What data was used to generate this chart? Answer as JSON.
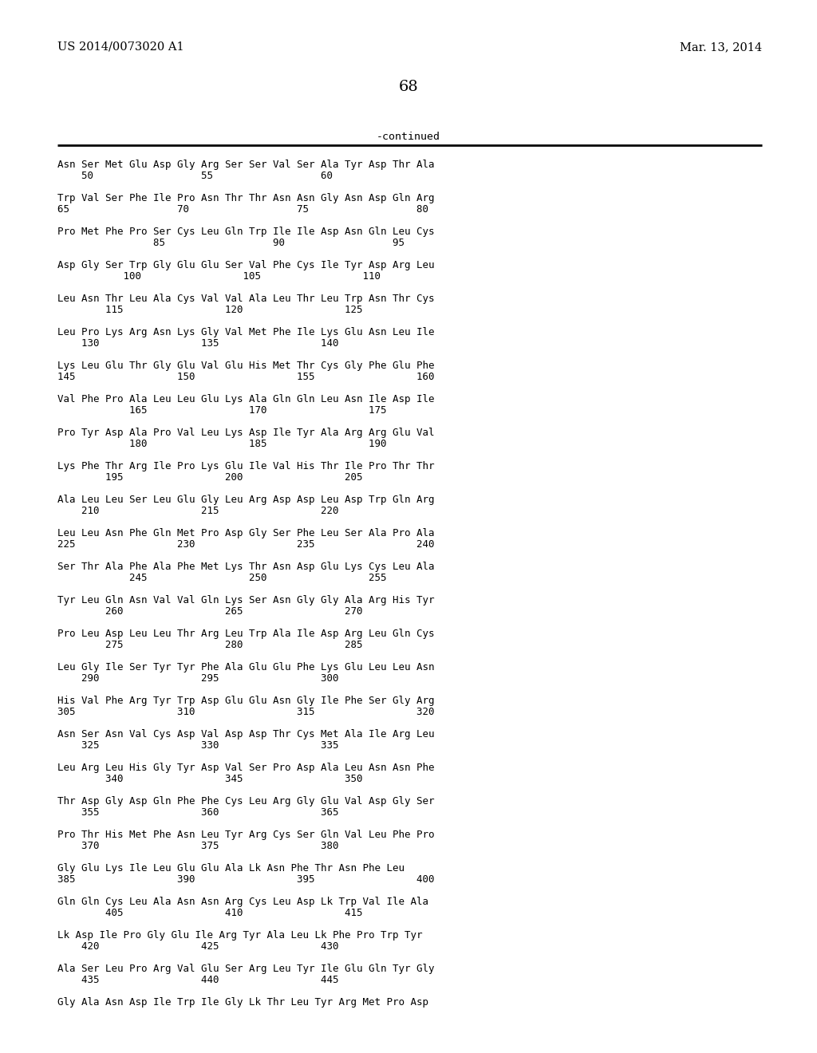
{
  "header_left": "US 2014/0073020 A1",
  "header_right": "Mar. 13, 2014",
  "page_number": "68",
  "continued_text": "-continued",
  "sequence_pairs": [
    [
      "Asn Ser Met Glu Asp Gly Arg Ser Ser Val Ser Ala Tyr Asp Thr Ala",
      "    50                  55                  60"
    ],
    [
      "Trp Val Ser Phe Ile Pro Asn Thr Thr Asn Asn Gly Asn Asp Gln Arg",
      "65                  70                  75                  80"
    ],
    [
      "Pro Met Phe Pro Ser Cys Leu Gln Trp Ile Ile Asp Asn Gln Leu Cys",
      "                85                  90                  95"
    ],
    [
      "Asp Gly Ser Trp Gly Glu Glu Ser Val Phe Cys Ile Tyr Asp Arg Leu",
      "           100                 105                 110"
    ],
    [
      "Leu Asn Thr Leu Ala Cys Val Val Ala Leu Thr Leu Trp Asn Thr Cys",
      "        115                 120                 125"
    ],
    [
      "Leu Pro Lys Arg Asn Lys Gly Val Met Phe Ile Lys Glu Asn Leu Ile",
      "    130                 135                 140"
    ],
    [
      "Lys Leu Glu Thr Gly Glu Val Glu His Met Thr Cys Gly Phe Glu Phe",
      "145                 150                 155                 160"
    ],
    [
      "Val Phe Pro Ala Leu Leu Glu Lys Ala Gln Gln Leu Asn Ile Asp Ile",
      "            165                 170                 175"
    ],
    [
      "Pro Tyr Asp Ala Pro Val Leu Lys Asp Ile Tyr Ala Arg Arg Glu Val",
      "            180                 185                 190"
    ],
    [
      "Lys Phe Thr Arg Ile Pro Lys Glu Ile Val His Thr Ile Pro Thr Thr",
      "        195                 200                 205"
    ],
    [
      "Ala Leu Leu Ser Leu Glu Gly Leu Arg Asp Asp Leu Asp Trp Gln Arg",
      "    210                 215                 220"
    ],
    [
      "Leu Leu Asn Phe Gln Met Pro Asp Gly Ser Phe Leu Ser Ala Pro Ala",
      "225                 230                 235                 240"
    ],
    [
      "Ser Thr Ala Phe Ala Phe Met Lys Thr Asn Asp Glu Lys Cys Leu Ala",
      "            245                 250                 255"
    ],
    [
      "Tyr Leu Gln Asn Val Val Gln Lys Ser Asn Gly Gly Ala Arg His Tyr",
      "        260                 265                 270"
    ],
    [
      "Pro Leu Asp Leu Leu Thr Arg Leu Trp Ala Ile Asp Arg Leu Gln Cys",
      "        275                 280                 285"
    ],
    [
      "Leu Gly Ile Ser Tyr Tyr Phe Ala Glu Glu Phe Lys Glu Leu Leu Asn",
      "    290                 295                 300"
    ],
    [
      "His Val Phe Arg Tyr Trp Asp Glu Glu Asn Gly Ile Phe Ser Gly Arg",
      "305                 310                 315                 320"
    ],
    [
      "Asn Ser Asn Val Cys Asp Val Asp Asp Thr Cys Met Ala Ile Arg Leu",
      "    325                 330                 335"
    ],
    [
      "Leu Arg Leu His Gly Tyr Asp Val Ser Pro Asp Ala Leu Asn Asn Phe",
      "        340                 345                 350"
    ],
    [
      "Thr Asp Gly Asp Gln Phe Phe Cys Leu Arg Gly Glu Val Asp Gly Ser",
      "    355                 360                 365"
    ],
    [
      "Pro Thr His Met Phe Asn Leu Tyr Arg Cys Ser Gln Val Leu Phe Pro",
      "    370                 375                 380"
    ],
    [
      "Gly Glu Lys Ile Leu Glu Glu Ala Lk Asn Phe Thr Asn Phe Leu",
      "385                 390                 395                 400"
    ],
    [
      "Gln Gln Cys Leu Ala Asn Asn Arg Cys Leu Asp Lk Trp Val Ile Ala",
      "        405                 410                 415"
    ],
    [
      "Lk Asp Ile Pro Gly Glu Ile Arg Tyr Ala Leu Lk Phe Pro Trp Tyr",
      "    420                 425                 430"
    ],
    [
      "Ala Ser Leu Pro Arg Val Glu Ser Arg Leu Tyr Ile Glu Gln Tyr Gly",
      "    435                 440                 445"
    ],
    [
      "Gly Ala Asn Asp Ile Trp Ile Gly Lk Thr Leu Tyr Arg Met Pro Asp",
      ""
    ]
  ]
}
